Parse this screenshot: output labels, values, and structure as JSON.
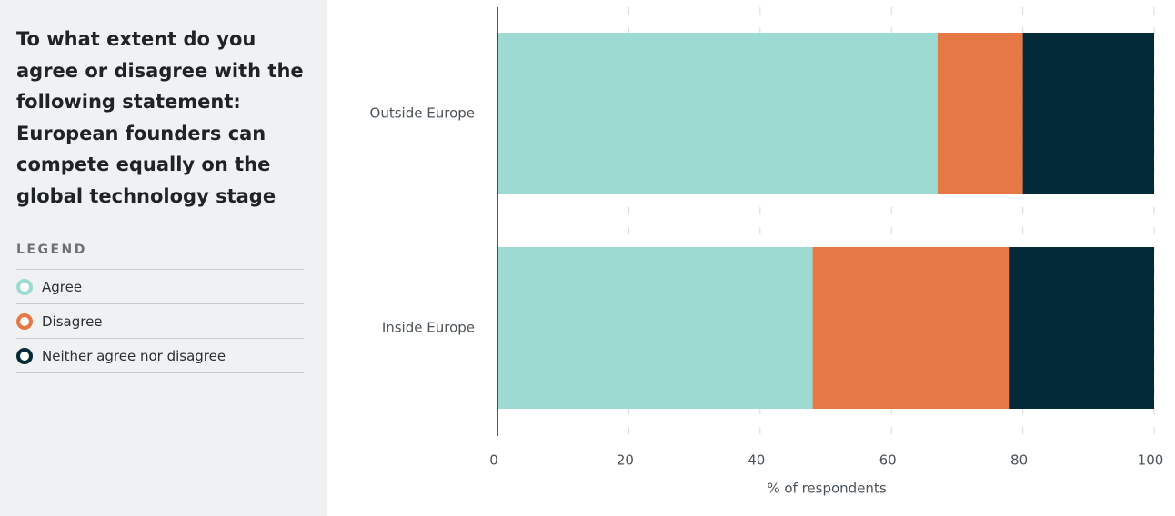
{
  "chart_data": {
    "type": "bar",
    "orientation": "horizontal",
    "stacked": true,
    "title": "To what extent do you agree or disagree with the following statement: European founders can compete equally on the global technology stage",
    "legend_title": "LEGEND",
    "categories": [
      "Outside Europe",
      "Inside Europe"
    ],
    "series": [
      {
        "name": "Agree",
        "color": "#9ddbd2",
        "values": [
          67,
          48
        ]
      },
      {
        "name": "Disagree",
        "color": "#e57845",
        "values": [
          13,
          30
        ]
      },
      {
        "name": "Neither agree nor disagree",
        "color": "#022a38",
        "values": [
          20,
          22
        ]
      }
    ],
    "xlim": [
      0,
      100
    ],
    "xticks": [
      0,
      20,
      40,
      60,
      80,
      100
    ],
    "xlabel": "% of respondents",
    "grid": true
  }
}
